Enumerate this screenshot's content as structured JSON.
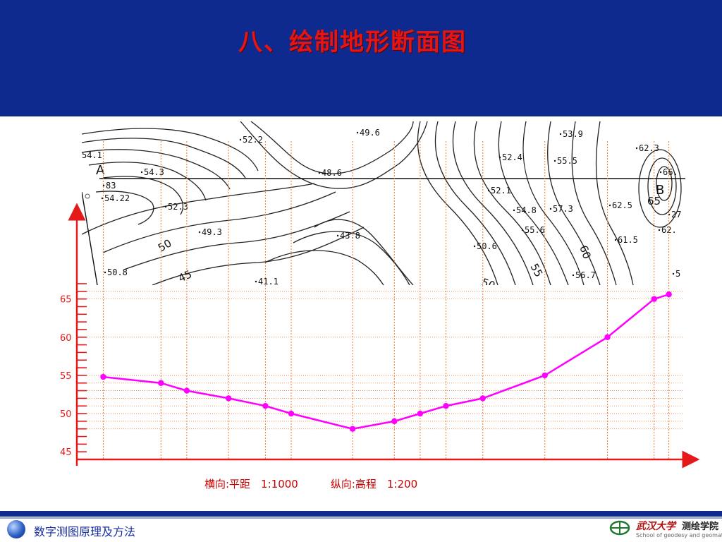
{
  "slide": {
    "title": "八、绘制地形断面图"
  },
  "map": {
    "point_labels": [
      "A",
      "B"
    ],
    "spot_heights": [
      "54.1",
      "83",
      "54.22",
      "54.3",
      "52.3",
      "52.2",
      "49.3",
      "50.8",
      "41.1",
      "49.6",
      "48.6",
      "43.8",
      "50.6",
      "52.1",
      "52.4",
      "54.8",
      "55.6",
      "57.3",
      "55.5",
      "53.9",
      "56.7",
      "62.3",
      "66.",
      "62.5",
      "62.",
      "61.5",
      "27",
      "5"
    ],
    "contour_labels": [
      "50",
      "45",
      "55",
      "60",
      "65",
      "50"
    ]
  },
  "chart_data": {
    "type": "line",
    "title": "",
    "xlabel": "横向:平距　1:1000",
    "ylabel": "纵向:高程　1:200",
    "ylim": [
      44,
      67
    ],
    "y_ticks": [
      45,
      50,
      55,
      60,
      65
    ],
    "color": "#ff00ff",
    "series": [
      {
        "points": [
          [
            0.043,
            54.8
          ],
          [
            0.137,
            54.0
          ],
          [
            0.179,
            53.0
          ],
          [
            0.247,
            52.0
          ],
          [
            0.307,
            51.0
          ],
          [
            0.349,
            50.0
          ],
          [
            0.449,
            48.0
          ],
          [
            0.517,
            49.0
          ],
          [
            0.559,
            50.0
          ],
          [
            0.601,
            51.0
          ],
          [
            0.661,
            52.0
          ],
          [
            0.762,
            55.0
          ],
          [
            0.864,
            60.0
          ],
          [
            0.94,
            65.0
          ],
          [
            0.964,
            65.6
          ]
        ]
      }
    ]
  },
  "scale_note": {
    "horizontal": "横向:平距　1:1000",
    "vertical": "纵向:高程　1:200"
  },
  "footer": {
    "course": "数字测图原理及方法",
    "school": "武汉大学",
    "dept": "测绘学院",
    "school_en": "School of geodesy and geomatics"
  }
}
